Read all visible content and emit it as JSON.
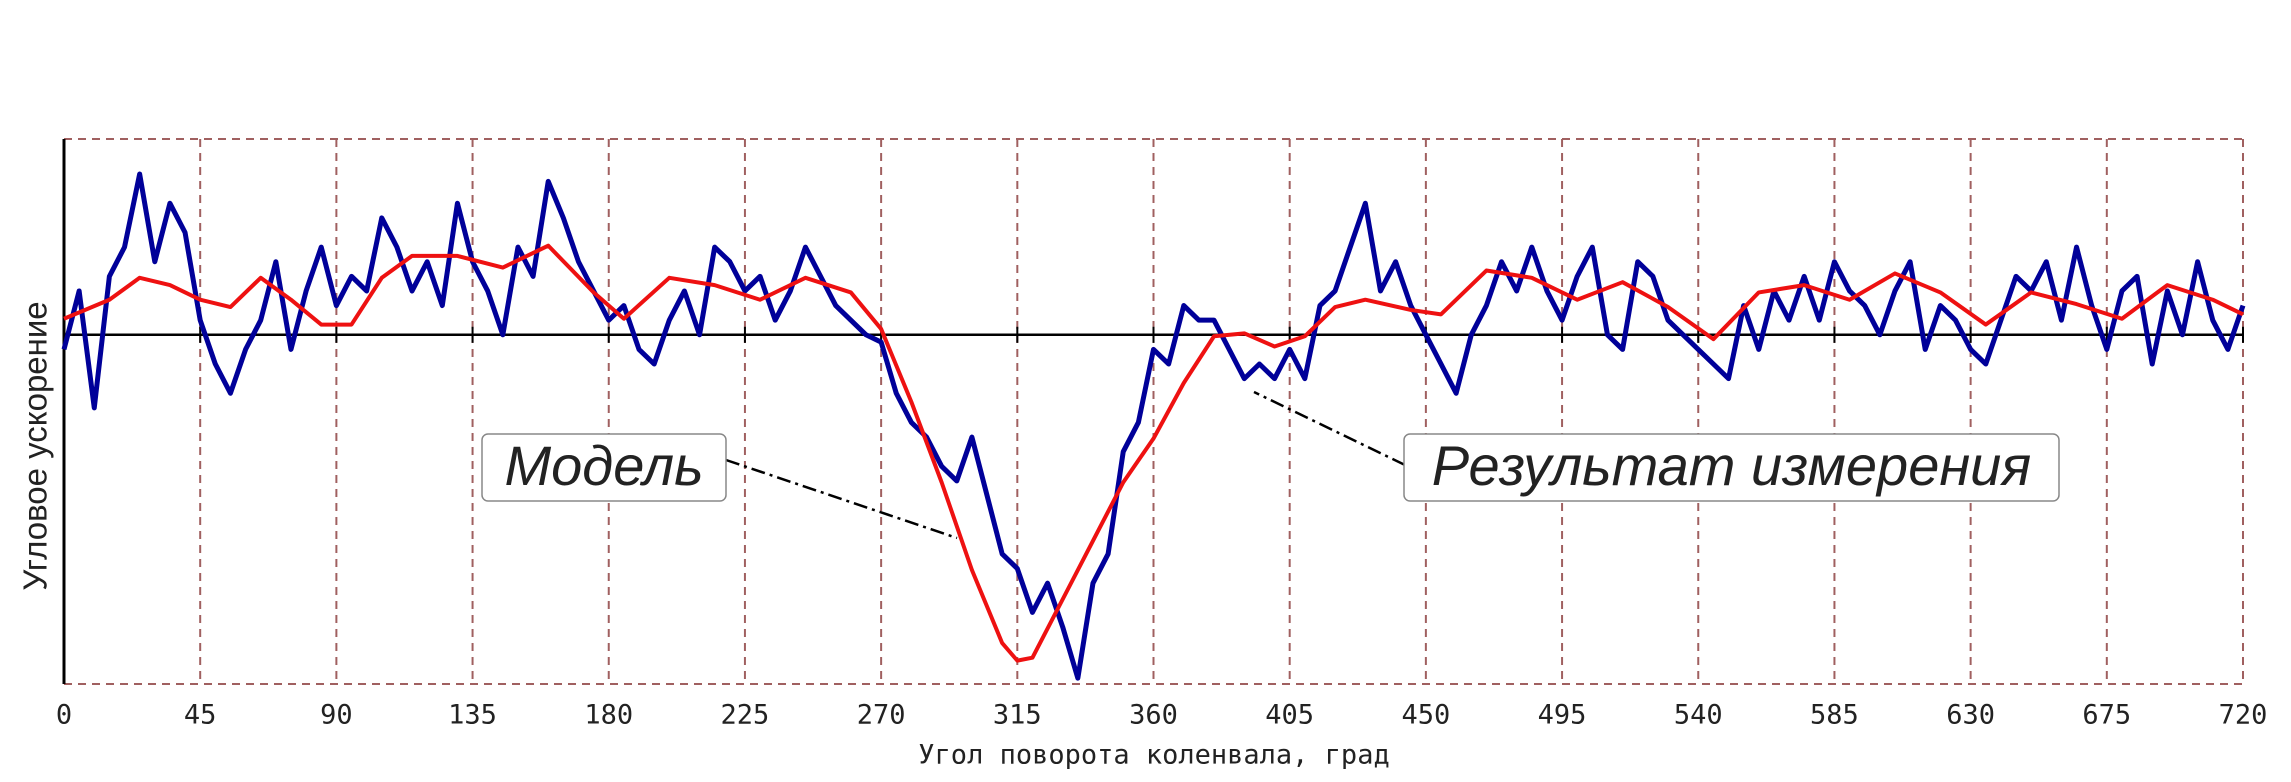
{
  "chart_data": {
    "type": "line",
    "x_label": "Угол поворота коленвала, град",
    "y_label": "Угловое ускорение",
    "xlim": [
      0,
      720
    ],
    "xticks": [
      0,
      45,
      90,
      135,
      180,
      225,
      270,
      315,
      360,
      405,
      450,
      495,
      540,
      585,
      630,
      675,
      720
    ],
    "ylim": [
      -2.39,
      1.34
    ],
    "grid": true,
    "series": [
      {
        "name": "Результат измерения",
        "color": "#000099",
        "x": [
          0,
          5,
          10,
          15,
          20,
          25,
          30,
          35,
          40,
          45,
          50,
          55,
          60,
          65,
          70,
          75,
          80,
          85,
          90,
          95,
          100,
          105,
          110,
          115,
          120,
          125,
          130,
          135,
          140,
          145,
          150,
          155,
          160,
          165,
          170,
          175,
          180,
          185,
          190,
          195,
          200,
          205,
          210,
          215,
          220,
          225,
          230,
          235,
          240,
          245,
          250,
          255,
          260,
          265,
          270,
          275,
          280,
          285,
          290,
          295,
          300,
          305,
          310,
          315,
          320,
          325,
          330,
          335,
          340,
          345,
          350,
          355,
          360,
          365,
          370,
          375,
          380,
          385,
          390,
          395,
          400,
          405,
          410,
          415,
          420,
          425,
          430,
          435,
          440,
          445,
          450,
          455,
          460,
          465,
          470,
          475,
          480,
          485,
          490,
          495,
          500,
          505,
          510,
          515,
          520,
          525,
          530,
          535,
          540,
          545,
          550,
          555,
          560,
          565,
          570,
          575,
          580,
          585,
          590,
          595,
          600,
          605,
          610,
          615,
          620,
          625,
          630,
          635,
          640,
          645,
          650,
          655,
          660,
          665,
          670,
          675,
          680,
          685,
          690,
          695,
          700,
          705,
          710,
          715,
          720
        ],
        "values": [
          -0.1,
          0.3,
          -0.5,
          0.4,
          0.6,
          1.1,
          0.5,
          0.9,
          0.7,
          0.1,
          -0.2,
          -0.4,
          -0.1,
          0.1,
          0.5,
          -0.1,
          0.3,
          0.6,
          0.2,
          0.4,
          0.3,
          0.8,
          0.6,
          0.3,
          0.5,
          0.2,
          0.9,
          0.5,
          0.3,
          0.0,
          0.6,
          0.4,
          1.05,
          0.8,
          0.5,
          0.3,
          0.1,
          0.2,
          -0.1,
          -0.2,
          0.1,
          0.3,
          0.0,
          0.6,
          0.5,
          0.3,
          0.4,
          0.1,
          0.3,
          0.6,
          0.4,
          0.2,
          0.1,
          0.0,
          -0.05,
          -0.4,
          -0.6,
          -0.7,
          -0.9,
          -1.0,
          -0.7,
          -1.1,
          -1.5,
          -1.6,
          -1.9,
          -1.7,
          -2.0,
          -2.35,
          -1.7,
          -1.5,
          -0.8,
          -0.6,
          -0.1,
          -0.2,
          0.2,
          0.1,
          0.1,
          -0.1,
          -0.3,
          -0.2,
          -0.3,
          -0.1,
          -0.3,
          0.2,
          0.3,
          0.6,
          0.9,
          0.3,
          0.5,
          0.2,
          0.0,
          -0.2,
          -0.4,
          0.0,
          0.2,
          0.5,
          0.3,
          0.6,
          0.3,
          0.1,
          0.4,
          0.6,
          0.0,
          -0.1,
          0.5,
          0.4,
          0.1,
          0.0,
          -0.1,
          -0.2,
          -0.3,
          0.2,
          -0.1,
          0.3,
          0.1,
          0.4,
          0.1,
          0.5,
          0.3,
          0.2,
          0.0,
          0.3,
          0.5,
          -0.1,
          0.2,
          0.1,
          -0.1,
          -0.2,
          0.1,
          0.4,
          0.3,
          0.5,
          0.1,
          0.6,
          0.2,
          -0.1,
          0.3,
          0.4,
          -0.2,
          0.3,
          0.0,
          0.5,
          0.1,
          -0.1,
          0.2
        ]
      },
      {
        "name": "Модель",
        "color": "#ee1111",
        "x": [
          0,
          15,
          25,
          35,
          45,
          55,
          65,
          75,
          85,
          95,
          105,
          115,
          130,
          145,
          160,
          175,
          185,
          200,
          215,
          230,
          245,
          260,
          270,
          280,
          290,
          300,
          310,
          315,
          320,
          330,
          340,
          350,
          360,
          370,
          380,
          390,
          400,
          410,
          420,
          430,
          445,
          455,
          470,
          485,
          500,
          515,
          530,
          545,
          560,
          575,
          590,
          605,
          620,
          635,
          650,
          665,
          680,
          695,
          710,
          720
        ],
        "values": [
          0.11,
          0.24,
          0.39,
          0.34,
          0.24,
          0.19,
          0.39,
          0.24,
          0.07,
          0.07,
          0.39,
          0.54,
          0.54,
          0.46,
          0.61,
          0.29,
          0.11,
          0.39,
          0.34,
          0.24,
          0.39,
          0.29,
          0.04,
          -0.46,
          -1.01,
          -1.61,
          -2.11,
          -2.23,
          -2.21,
          -1.81,
          -1.41,
          -1.01,
          -0.71,
          -0.33,
          -0.01,
          0.01,
          -0.08,
          -0.01,
          0.19,
          0.24,
          0.17,
          0.14,
          0.44,
          0.39,
          0.24,
          0.36,
          0.19,
          -0.03,
          0.29,
          0.34,
          0.24,
          0.42,
          0.29,
          0.07,
          0.29,
          0.21,
          0.11,
          0.34,
          0.24,
          0.14
        ]
      }
    ]
  }
}
